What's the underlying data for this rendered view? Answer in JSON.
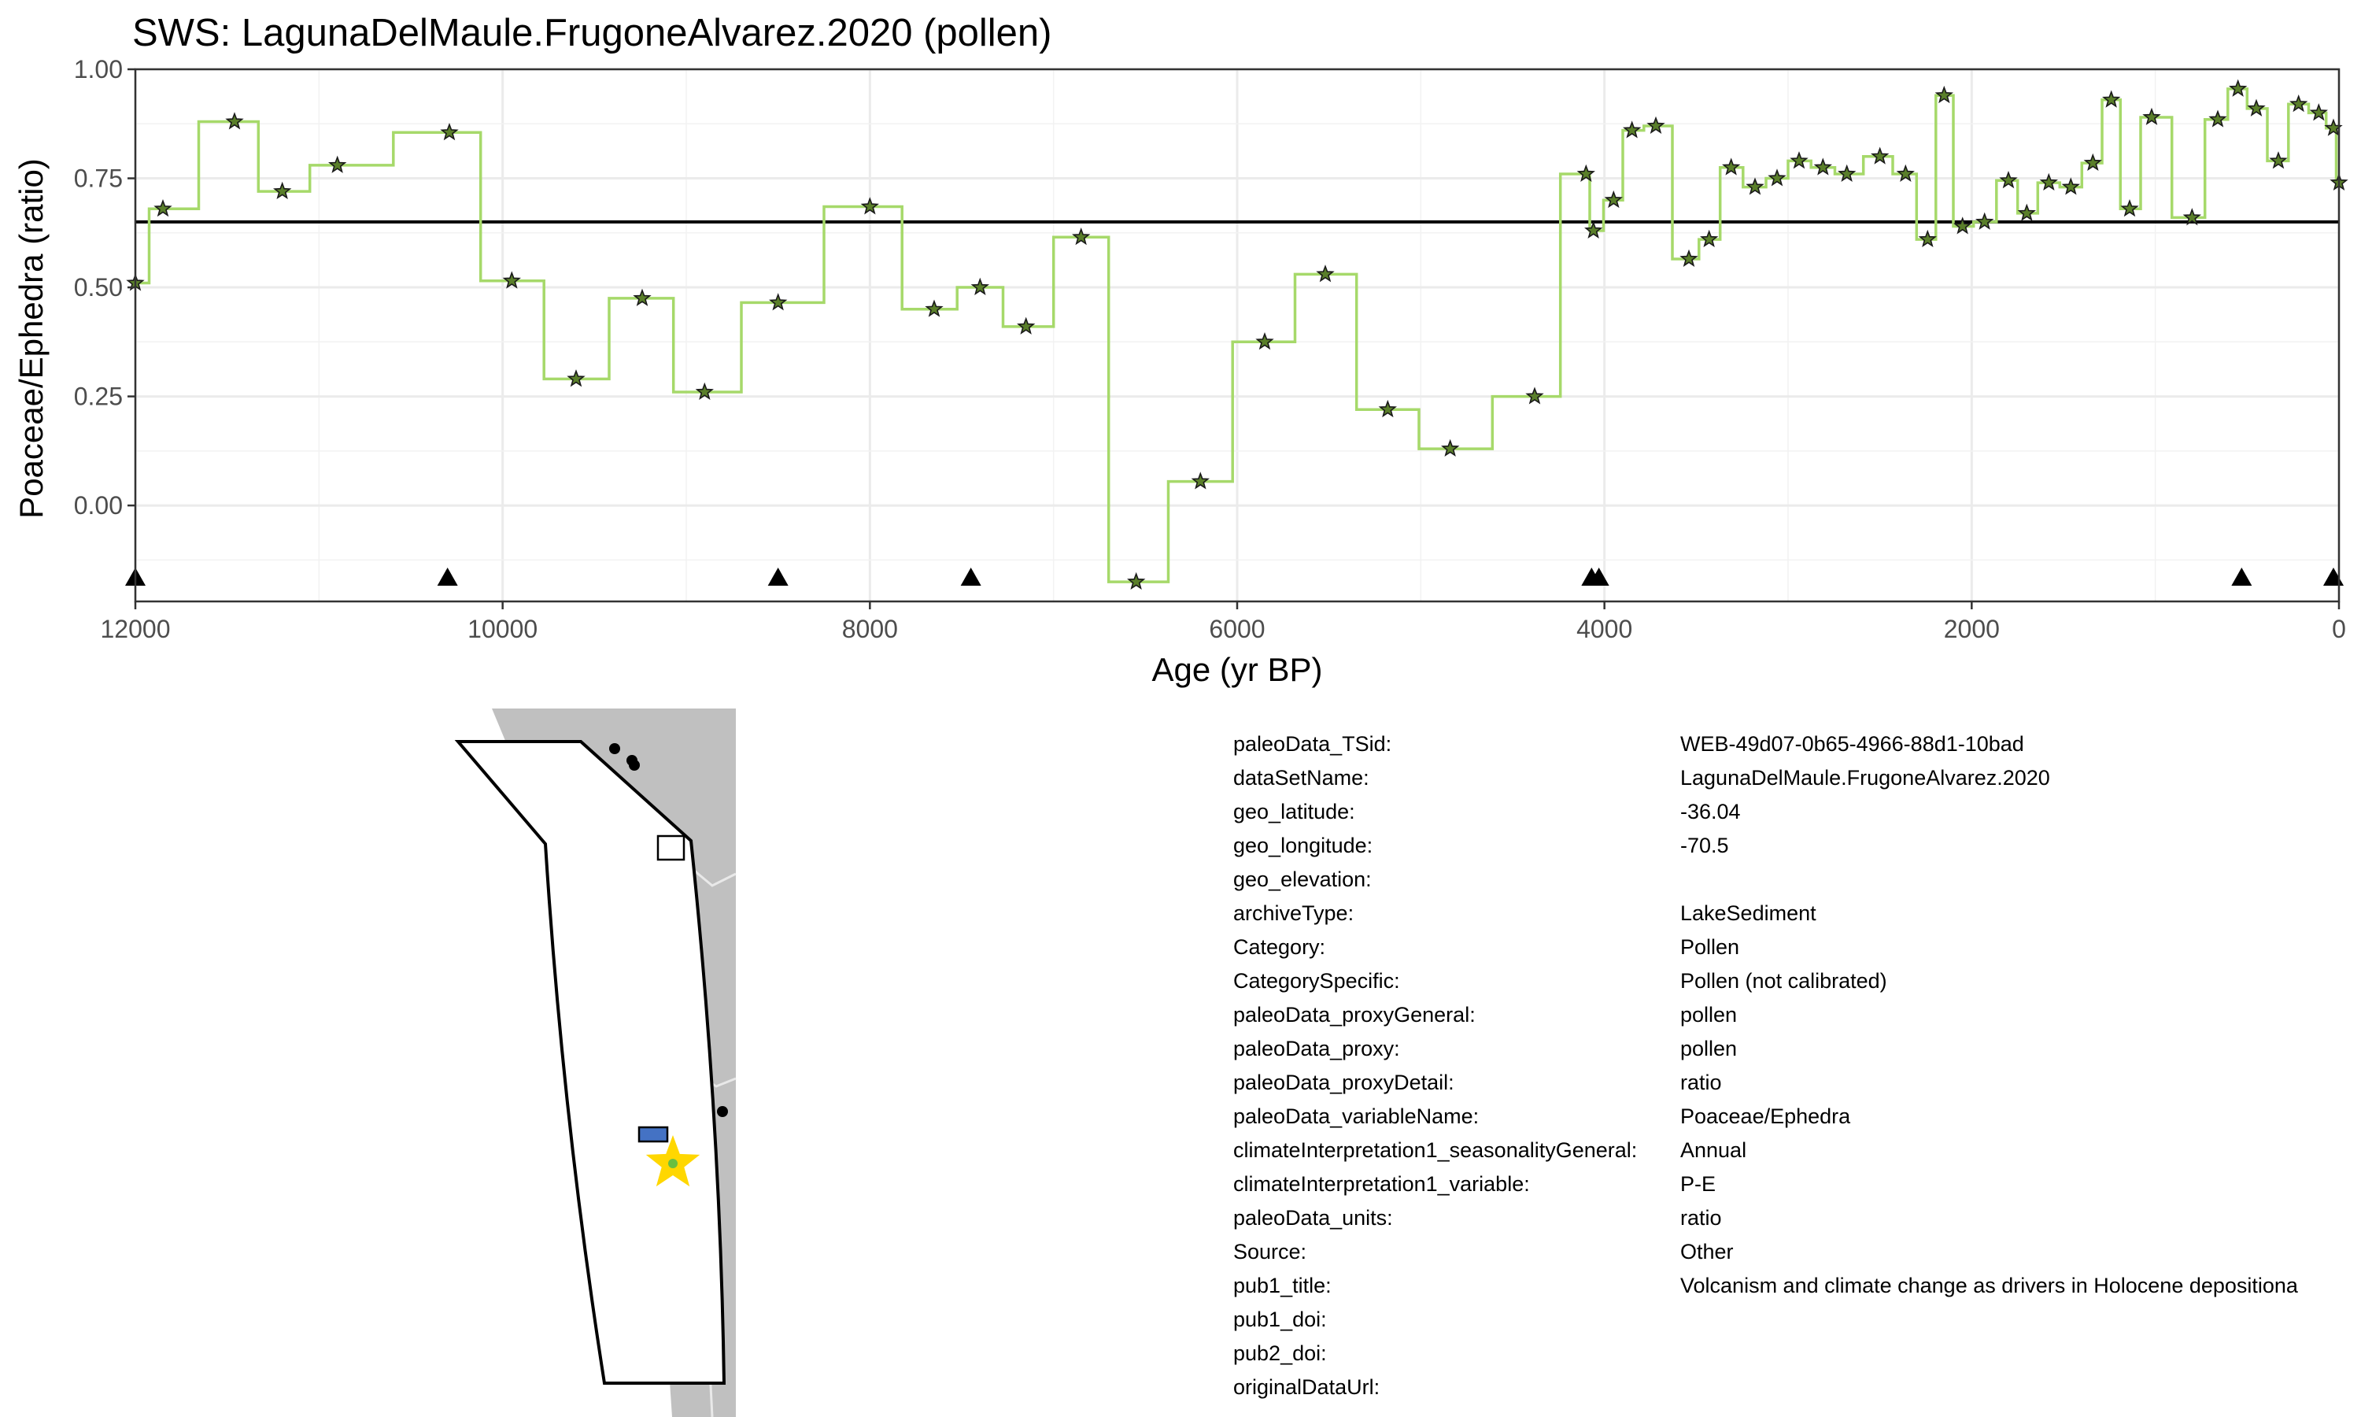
{
  "chart_data": {
    "type": "line",
    "title": "SWS: LagunaDelMaule.FrugoneAlvarez.2020 (pollen)",
    "xlabel": "Age (yr BP)",
    "ylabel": "Poaceae/Ephedra (ratio)",
    "xlim": [
      12000,
      0
    ],
    "ylim": [
      -0.22,
      1.0
    ],
    "x_reversed": true,
    "grid": true,
    "x_ticks": [
      "12000",
      "10000",
      "8000",
      "6000",
      "4000",
      "2000",
      "0"
    ],
    "y_ticks": [
      "1.00",
      "0.75",
      "0.50",
      "0.25",
      "0.00"
    ],
    "line_color": "#a6d96a",
    "marker": "star",
    "marker_fill": "#5a7f2a",
    "mean_line": 0.65,
    "chron_markers": [
      12000,
      10300,
      8500,
      7450,
      4070,
      4030,
      530,
      30
    ],
    "series": [
      {
        "x": [
          12000,
          11850,
          11460,
          11200,
          10900,
          10290,
          9950,
          9600,
          9240,
          8900,
          8500,
          8000,
          7650,
          7400,
          7150,
          6850,
          6550,
          6200,
          5850,
          5520,
          5180,
          4840,
          4380,
          4100,
          4060,
          3950,
          3850,
          3720,
          3540,
          3430,
          3310,
          3180,
          3060,
          2940,
          2810,
          2680,
          2500,
          2360,
          2240,
          2150,
          2050,
          1930,
          1800,
          1700,
          1580,
          1460,
          1340,
          1240,
          1140,
          1020,
          800,
          660,
          550,
          450,
          330,
          220,
          110,
          30,
          0
        ],
        "y": [
          0.51,
          0.68,
          0.88,
          0.72,
          0.78,
          0.855,
          0.515,
          0.29,
          0.475,
          0.26,
          0.465,
          0.685,
          0.45,
          0.5,
          0.41,
          0.615,
          -0.175,
          0.055,
          0.375,
          0.53,
          0.22,
          0.13,
          0.25,
          0.76,
          0.63,
          0.7,
          0.86,
          0.87,
          0.565,
          0.61,
          0.775,
          0.73,
          0.75,
          0.79,
          0.775,
          0.76,
          0.8,
          0.76,
          0.61,
          0.94,
          0.64,
          0.65,
          0.745,
          0.67,
          0.74,
          0.73,
          0.785,
          0.93,
          0.68,
          0.89,
          0.66,
          0.885,
          0.955,
          0.91,
          0.79,
          0.92,
          0.9,
          0.865,
          0.74
        ]
      }
    ]
  },
  "map": {
    "land_color": "#c0c0c0",
    "region_fill": "#ffffff",
    "proxy_box_color": "#4472c4",
    "site_marker_color": "#ffd700",
    "site_marker_icon": "star-icon"
  },
  "metadata": [
    {
      "key": "paleoData_TSid:",
      "value": "WEB-49d07-0b65-4966-88d1-10bad"
    },
    {
      "key": "dataSetName:",
      "value": "LagunaDelMaule.FrugoneAlvarez.2020"
    },
    {
      "key": "geo_latitude:",
      "value": "-36.04"
    },
    {
      "key": "geo_longitude:",
      "value": "-70.5"
    },
    {
      "key": "geo_elevation:",
      "value": ""
    },
    {
      "key": "archiveType:",
      "value": "LakeSediment"
    },
    {
      "key": "Category:",
      "value": "Pollen"
    },
    {
      "key": "CategorySpecific:",
      "value": "Pollen (not calibrated)"
    },
    {
      "key": "paleoData_proxyGeneral:",
      "value": "pollen"
    },
    {
      "key": "paleoData_proxy:",
      "value": "pollen"
    },
    {
      "key": "paleoData_proxyDetail:",
      "value": "ratio"
    },
    {
      "key": "paleoData_variableName:",
      "value": "Poaceae/Ephedra"
    },
    {
      "key": "climateInterpretation1_seasonalityGeneral:",
      "value": "Annual"
    },
    {
      "key": "climateInterpretation1_variable:",
      "value": "P-E"
    },
    {
      "key": "paleoData_units:",
      "value": "ratio"
    },
    {
      "key": "Source:",
      "value": "Other"
    },
    {
      "key": "pub1_title:",
      "value": "Volcanism and climate change as drivers in Holocene depositiona"
    },
    {
      "key": "pub1_doi:",
      "value": ""
    },
    {
      "key": "pub2_doi:",
      "value": ""
    },
    {
      "key": "originalDataUrl:",
      "value": ""
    }
  ]
}
